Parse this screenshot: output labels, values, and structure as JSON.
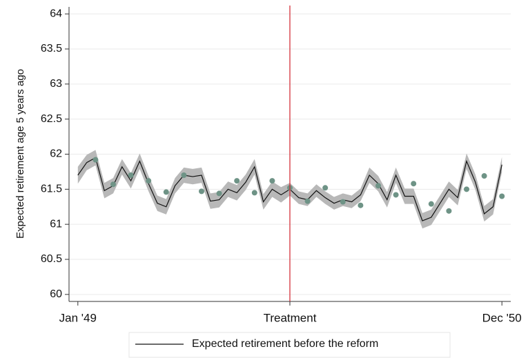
{
  "chart_data": {
    "type": "line",
    "y_label": "Expected retirement age 5 years ago",
    "x": [
      0,
      1,
      2,
      3,
      4,
      5,
      6,
      7,
      8,
      9,
      10,
      11,
      12,
      13,
      14,
      15,
      16,
      17,
      18,
      19,
      20,
      21,
      22,
      23,
      24,
      25,
      26,
      27,
      28,
      29,
      30,
      31,
      32,
      33,
      34,
      35,
      36,
      37,
      38,
      39,
      40,
      41,
      42,
      43,
      44,
      45,
      46,
      47,
      48
    ],
    "series": [
      {
        "name": "Expected retirement before the reform",
        "color": "#111111",
        "values": [
          61.7,
          61.88,
          61.95,
          61.48,
          61.55,
          61.82,
          61.62,
          61.9,
          61.58,
          61.3,
          61.25,
          61.55,
          61.7,
          61.68,
          61.7,
          61.33,
          61.35,
          61.5,
          61.45,
          61.6,
          61.82,
          61.32,
          61.5,
          61.42,
          61.5,
          61.38,
          61.35,
          61.48,
          61.38,
          61.3,
          61.35,
          61.32,
          61.42,
          61.7,
          61.58,
          61.35,
          61.7,
          61.4,
          61.4,
          61.05,
          61.1,
          61.3,
          61.5,
          61.38,
          61.9,
          61.6,
          61.15,
          61.25,
          61.85
        ]
      }
    ],
    "band": {
      "color": "#b8b8b8",
      "lower": [
        61.58,
        61.77,
        61.84,
        61.37,
        61.44,
        61.71,
        61.51,
        61.79,
        61.47,
        61.19,
        61.14,
        61.44,
        61.59,
        61.57,
        61.59,
        61.22,
        61.24,
        61.39,
        61.34,
        61.49,
        61.71,
        61.21,
        61.39,
        61.31,
        61.41,
        61.29,
        61.26,
        61.39,
        61.29,
        61.21,
        61.26,
        61.23,
        61.33,
        61.59,
        61.47,
        61.24,
        61.59,
        61.29,
        61.29,
        60.94,
        60.99,
        61.19,
        61.39,
        61.27,
        61.79,
        61.49,
        61.04,
        61.14,
        61.74
      ],
      "upper": [
        61.82,
        61.99,
        62.06,
        61.59,
        61.66,
        61.93,
        61.73,
        62.01,
        61.69,
        61.41,
        61.36,
        61.66,
        61.81,
        61.79,
        61.81,
        61.44,
        61.46,
        61.61,
        61.56,
        61.71,
        61.93,
        61.43,
        61.61,
        61.53,
        61.59,
        61.47,
        61.44,
        61.57,
        61.47,
        61.39,
        61.44,
        61.41,
        61.51,
        61.81,
        61.69,
        61.46,
        61.81,
        61.51,
        61.51,
        61.16,
        61.21,
        61.41,
        61.61,
        61.49,
        62.01,
        61.71,
        61.26,
        61.36,
        61.96
      ]
    },
    "points": {
      "color": "#6e9386",
      "x": [
        2,
        4,
        6,
        8,
        10,
        12,
        14,
        16,
        18,
        20,
        22,
        24,
        26,
        28,
        30,
        32,
        34,
        36,
        38,
        40,
        42,
        44,
        46,
        48
      ],
      "values": [
        61.92,
        61.57,
        61.7,
        61.62,
        61.46,
        61.7,
        61.47,
        61.44,
        61.62,
        61.45,
        61.62,
        61.52,
        61.33,
        61.52,
        61.32,
        61.27,
        61.55,
        61.42,
        61.58,
        61.29,
        61.19,
        61.5,
        61.69,
        61.4
      ]
    },
    "vline": {
      "x": 24,
      "color": "#d0202a"
    },
    "xlim": [
      -1,
      49
    ],
    "xticks": [
      {
        "value": 0,
        "label": "Jan '49"
      },
      {
        "value": 24,
        "label": "Treatment"
      },
      {
        "value": 48,
        "label": "Dec '50"
      }
    ],
    "ylim": [
      59.9,
      64.1
    ],
    "yticks": [
      60,
      60.5,
      61,
      61.5,
      62,
      62.5,
      63,
      63.5,
      64
    ],
    "grid": true
  }
}
